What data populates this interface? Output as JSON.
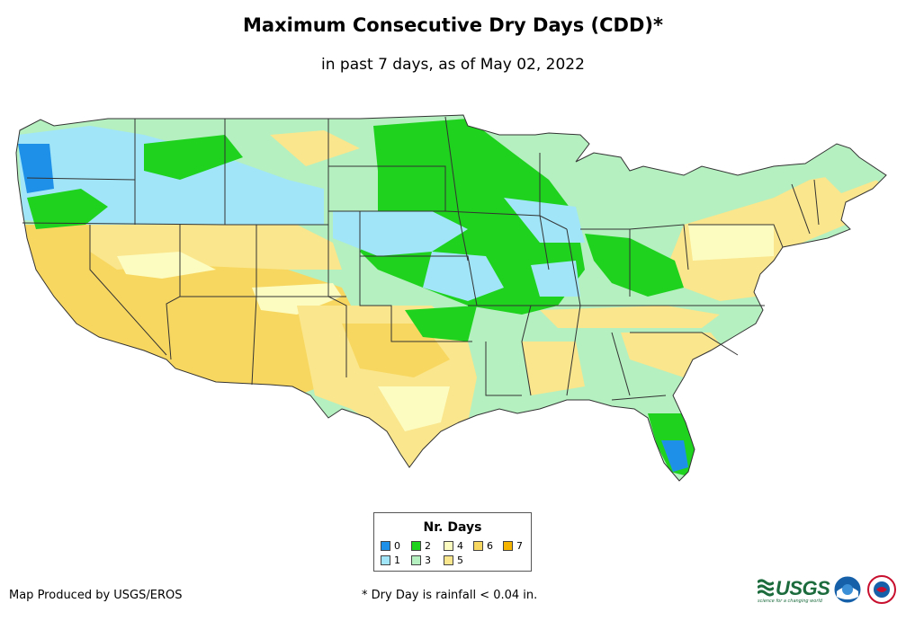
{
  "title": "Maximum Consecutive Dry Days (CDD)*",
  "subtitle": "in past 7 days, as of May 02, 2022",
  "legend": {
    "title": "Nr. Days",
    "items": [
      {
        "label": "0",
        "color": "#1e90e8"
      },
      {
        "label": "1",
        "color": "#a0e6f8"
      },
      {
        "label": "2",
        "color": "#1ed21e"
      },
      {
        "label": "3",
        "color": "#b4f0c0"
      },
      {
        "label": "4",
        "color": "#fcfcc0"
      },
      {
        "label": "5",
        "color": "#fae68c"
      },
      {
        "label": "6",
        "color": "#f8d760"
      },
      {
        "label": "7",
        "color": "#f5b400"
      }
    ]
  },
  "credit": "Map Produced by USGS/EROS",
  "footnote": "* Dry Day is rainfall < 0.04 in.",
  "logos": {
    "usgs_text": "USGS",
    "usgs_tagline": "science for a changing world",
    "noaa_icon": "noaa-logo-icon",
    "nws_icon": "nws-logo-icon"
  }
}
